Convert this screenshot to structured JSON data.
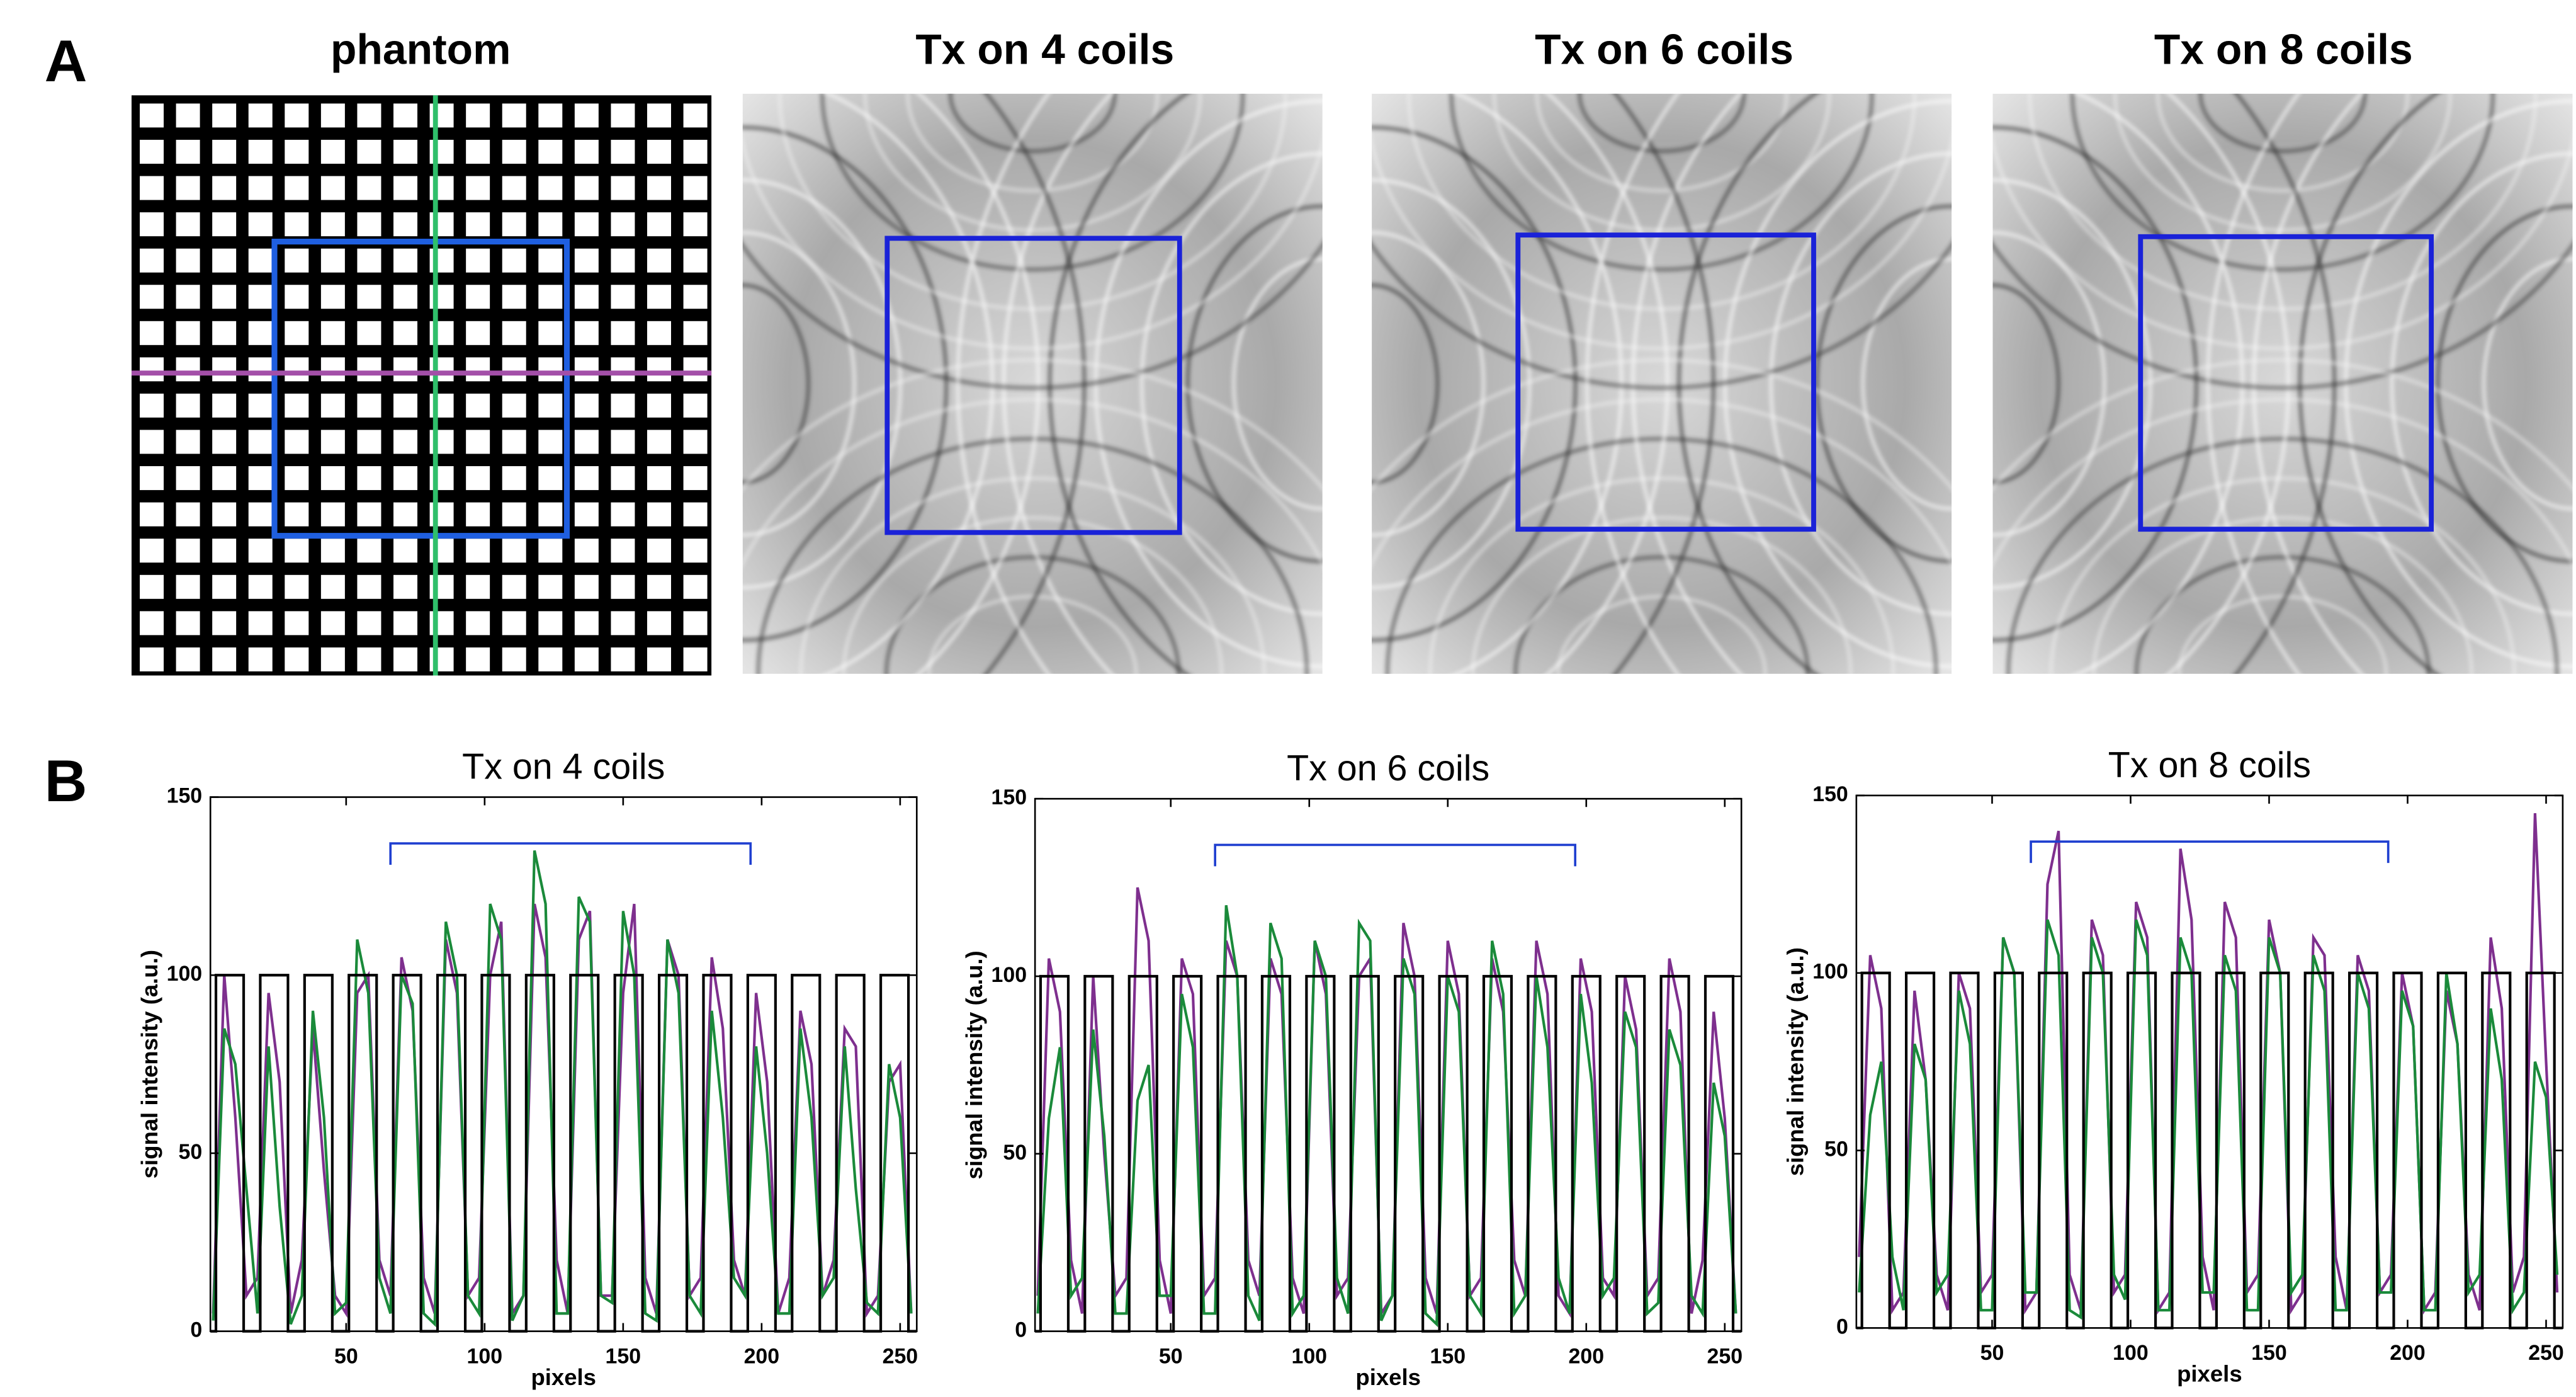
{
  "panel_labels": [
    "A",
    "B"
  ],
  "image_titles": [
    "phantom",
    "Tx on 4 coils",
    "Tx on 6 coils",
    "Tx on 8 coils"
  ],
  "chart_data": [
    {
      "type": "line",
      "title": "Tx on 4 coils",
      "xlabel": "pixels",
      "ylabel": "signal intensity (a.u.)",
      "xlim": [
        1,
        256
      ],
      "ylim": [
        0,
        150
      ],
      "xticks": [
        50,
        100,
        150,
        200,
        250
      ],
      "yticks": [
        0,
        50,
        100,
        150
      ],
      "bracket": {
        "x": [
          66,
          196
        ],
        "y": 137,
        "color": "#1f3fd0"
      },
      "x": [
        2,
        6,
        10,
        14,
        18,
        22,
        26,
        30,
        34,
        38,
        42,
        46,
        50,
        54,
        58,
        62,
        66,
        70,
        74,
        78,
        82,
        86,
        90,
        94,
        98,
        102,
        106,
        110,
        114,
        118,
        122,
        126,
        130,
        134,
        138,
        142,
        146,
        150,
        154,
        158,
        162,
        166,
        170,
        174,
        178,
        182,
        186,
        190,
        194,
        198,
        202,
        206,
        210,
        214,
        218,
        222,
        226,
        230,
        234,
        238,
        242,
        246,
        250,
        254
      ],
      "series": [
        {
          "color": "#7e2f8e",
          "values": [
            5,
            100,
            60,
            10,
            15,
            95,
            70,
            5,
            20,
            85,
            45,
            10,
            5,
            95,
            100,
            20,
            10,
            105,
            90,
            15,
            5,
            110,
            95,
            10,
            15,
            100,
            115,
            5,
            10,
            120,
            105,
            20,
            5,
            110,
            118,
            10,
            10,
            95,
            120,
            15,
            5,
            110,
            100,
            10,
            15,
            105,
            85,
            20,
            10,
            95,
            70,
            5,
            15,
            90,
            75,
            10,
            20,
            85,
            80,
            5,
            10,
            70,
            75,
            5
          ]
        },
        {
          "color": "#1a8a3a",
          "values": [
            3,
            85,
            75,
            40,
            5,
            80,
            35,
            2,
            10,
            90,
            60,
            5,
            8,
            110,
            95,
            15,
            5,
            100,
            92,
            5,
            2,
            115,
            100,
            10,
            5,
            120,
            110,
            3,
            10,
            135,
            120,
            5,
            5,
            122,
            115,
            10,
            8,
            118,
            100,
            5,
            3,
            110,
            95,
            10,
            5,
            90,
            60,
            15,
            10,
            80,
            50,
            5,
            5,
            85,
            60,
            10,
            15,
            80,
            40,
            8,
            5,
            75,
            60,
            5
          ]
        },
        {
          "color": "#000000",
          "x": [
            1,
            3,
            3,
            13,
            13,
            19,
            19,
            29,
            29,
            35,
            35,
            45,
            45,
            51,
            51,
            61,
            61,
            67,
            67,
            77,
            77,
            83,
            83,
            93,
            93,
            99,
            99,
            109,
            109,
            115,
            115,
            125,
            125,
            131,
            131,
            141,
            141,
            147,
            147,
            157,
            157,
            163,
            163,
            173,
            173,
            179,
            179,
            189,
            189,
            195,
            195,
            205,
            205,
            211,
            211,
            221,
            221,
            227,
            227,
            237,
            237,
            243,
            243,
            253,
            253,
            256
          ],
          "values": [
            0,
            0,
            100,
            100,
            0,
            0,
            100,
            100,
            0,
            0,
            100,
            100,
            0,
            0,
            100,
            100,
            0,
            0,
            100,
            100,
            0,
            0,
            100,
            100,
            0,
            0,
            100,
            100,
            0,
            0,
            100,
            100,
            0,
            0,
            100,
            100,
            0,
            0,
            100,
            100,
            0,
            0,
            100,
            100,
            0,
            0,
            100,
            100,
            0,
            0,
            100,
            100,
            0,
            0,
            100,
            100,
            0,
            0,
            100,
            100,
            0,
            0,
            100,
            100,
            0,
            0
          ]
        }
      ]
    },
    {
      "type": "line",
      "title": "Tx on 6 coils",
      "xlabel": "pixels",
      "ylabel": "signal intensity (a.u.)",
      "xlim": [
        1,
        256
      ],
      "ylim": [
        0,
        150
      ],
      "xticks": [
        50,
        100,
        150,
        200,
        250
      ],
      "yticks": [
        0,
        50,
        100,
        150
      ],
      "bracket": {
        "x": [
          66,
          196
        ],
        "y": 137,
        "color": "#1f3fd0"
      },
      "x": [
        2,
        6,
        10,
        14,
        18,
        22,
        26,
        30,
        34,
        38,
        42,
        46,
        50,
        54,
        58,
        62,
        66,
        70,
        74,
        78,
        82,
        86,
        90,
        94,
        98,
        102,
        106,
        110,
        114,
        118,
        122,
        126,
        130,
        134,
        138,
        142,
        146,
        150,
        154,
        158,
        162,
        166,
        170,
        174,
        178,
        182,
        186,
        190,
        194,
        198,
        202,
        206,
        210,
        214,
        218,
        222,
        226,
        230,
        234,
        238,
        242,
        246,
        250,
        254
      ],
      "series": [
        {
          "color": "#7e2f8e",
          "values": [
            10,
            105,
            90,
            20,
            5,
            100,
            50,
            10,
            15,
            125,
            110,
            20,
            5,
            105,
            95,
            10,
            15,
            110,
            100,
            20,
            10,
            105,
            95,
            15,
            5,
            110,
            95,
            10,
            15,
            100,
            105,
            5,
            10,
            115,
            100,
            15,
            5,
            110,
            95,
            10,
            15,
            105,
            90,
            20,
            10,
            110,
            95,
            10,
            5,
            105,
            90,
            15,
            10,
            100,
            85,
            10,
            15,
            105,
            90,
            5,
            20,
            90,
            60,
            5
          ]
        },
        {
          "color": "#1a8a3a",
          "values": [
            5,
            60,
            80,
            10,
            15,
            85,
            55,
            5,
            5,
            65,
            75,
            10,
            10,
            95,
            80,
            5,
            5,
            120,
            100,
            10,
            3,
            115,
            105,
            5,
            10,
            110,
            100,
            15,
            5,
            115,
            110,
            3,
            10,
            105,
            95,
            5,
            2,
            100,
            90,
            10,
            5,
            110,
            95,
            5,
            10,
            100,
            80,
            15,
            5,
            95,
            70,
            10,
            15,
            90,
            80,
            5,
            8,
            85,
            75,
            10,
            5,
            70,
            55,
            5
          ]
        },
        {
          "color": "#000000",
          "x": [
            1,
            3,
            3,
            13,
            13,
            19,
            19,
            29,
            29,
            35,
            35,
            45,
            45,
            51,
            51,
            61,
            61,
            67,
            67,
            77,
            77,
            83,
            83,
            93,
            93,
            99,
            99,
            109,
            109,
            115,
            115,
            125,
            125,
            131,
            131,
            141,
            141,
            147,
            147,
            157,
            157,
            163,
            163,
            173,
            173,
            179,
            179,
            189,
            189,
            195,
            195,
            205,
            205,
            211,
            211,
            221,
            221,
            227,
            227,
            237,
            237,
            243,
            243,
            253,
            253,
            256
          ],
          "values": [
            0,
            0,
            100,
            100,
            0,
            0,
            100,
            100,
            0,
            0,
            100,
            100,
            0,
            0,
            100,
            100,
            0,
            0,
            100,
            100,
            0,
            0,
            100,
            100,
            0,
            0,
            100,
            100,
            0,
            0,
            100,
            100,
            0,
            0,
            100,
            100,
            0,
            0,
            100,
            100,
            0,
            0,
            100,
            100,
            0,
            0,
            100,
            100,
            0,
            0,
            100,
            100,
            0,
            0,
            100,
            100,
            0,
            0,
            100,
            100,
            0,
            0,
            100,
            100,
            0,
            0
          ]
        }
      ]
    },
    {
      "type": "line",
      "title": "Tx on 8 coils",
      "xlabel": "pixels",
      "ylabel": "signal intensity (a.u.)",
      "xlim": [
        1,
        256
      ],
      "ylim": [
        0,
        150
      ],
      "xticks": [
        50,
        100,
        150,
        200,
        250
      ],
      "yticks": [
        0,
        50,
        100,
        150
      ],
      "bracket": {
        "x": [
          64,
          193
        ],
        "y": 137,
        "color": "#1f3fd0"
      },
      "x": [
        2,
        6,
        10,
        14,
        18,
        22,
        26,
        30,
        34,
        38,
        42,
        46,
        50,
        54,
        58,
        62,
        66,
        70,
        74,
        78,
        82,
        86,
        90,
        94,
        98,
        102,
        106,
        110,
        114,
        118,
        122,
        126,
        130,
        134,
        138,
        142,
        146,
        150,
        154,
        158,
        162,
        166,
        170,
        174,
        178,
        182,
        186,
        190,
        194,
        198,
        202,
        206,
        210,
        214,
        218,
        222,
        226,
        230,
        234,
        238,
        242,
        246,
        250,
        254
      ],
      "series": [
        {
          "color": "#7e2f8e",
          "values": [
            20,
            105,
            90,
            5,
            10,
            95,
            70,
            15,
            5,
            100,
            90,
            10,
            15,
            110,
            100,
            5,
            10,
            125,
            140,
            15,
            5,
            115,
            105,
            10,
            15,
            120,
            110,
            5,
            10,
            135,
            115,
            20,
            5,
            120,
            110,
            10,
            15,
            115,
            100,
            5,
            10,
            110,
            105,
            20,
            5,
            105,
            95,
            10,
            15,
            100,
            85,
            5,
            10,
            95,
            80,
            15,
            5,
            110,
            90,
            10,
            20,
            145,
            75,
            10
          ]
        },
        {
          "color": "#1a8a3a",
          "values": [
            10,
            60,
            75,
            20,
            5,
            80,
            70,
            10,
            15,
            95,
            80,
            5,
            5,
            110,
            100,
            10,
            10,
            115,
            105,
            5,
            3,
            110,
            100,
            15,
            8,
            115,
            105,
            5,
            5,
            110,
            100,
            10,
            10,
            105,
            95,
            5,
            5,
            110,
            100,
            10,
            15,
            105,
            95,
            5,
            5,
            100,
            90,
            10,
            10,
            95,
            85,
            5,
            5,
            100,
            80,
            10,
            15,
            90,
            70,
            5,
            10,
            75,
            65,
            15
          ]
        },
        {
          "color": "#000000",
          "x": [
            1,
            3,
            3,
            13,
            13,
            19,
            19,
            29,
            29,
            35,
            35,
            45,
            45,
            51,
            51,
            61,
            61,
            67,
            67,
            77,
            77,
            83,
            83,
            93,
            93,
            99,
            99,
            109,
            109,
            115,
            115,
            125,
            125,
            131,
            131,
            141,
            141,
            147,
            147,
            157,
            157,
            163,
            163,
            173,
            173,
            179,
            179,
            189,
            189,
            195,
            195,
            205,
            205,
            211,
            211,
            221,
            221,
            227,
            227,
            237,
            237,
            243,
            243,
            253,
            253,
            256
          ],
          "values": [
            0,
            0,
            100,
            100,
            0,
            0,
            100,
            100,
            0,
            0,
            100,
            100,
            0,
            0,
            100,
            100,
            0,
            0,
            100,
            100,
            0,
            0,
            100,
            100,
            0,
            0,
            100,
            100,
            0,
            0,
            100,
            100,
            0,
            0,
            100,
            100,
            0,
            0,
            100,
            100,
            0,
            0,
            100,
            100,
            0,
            0,
            100,
            100,
            0,
            0,
            100,
            100,
            0,
            0,
            100,
            100,
            0,
            0,
            100,
            100,
            0,
            0,
            100,
            100,
            0,
            0
          ]
        }
      ]
    }
  ]
}
